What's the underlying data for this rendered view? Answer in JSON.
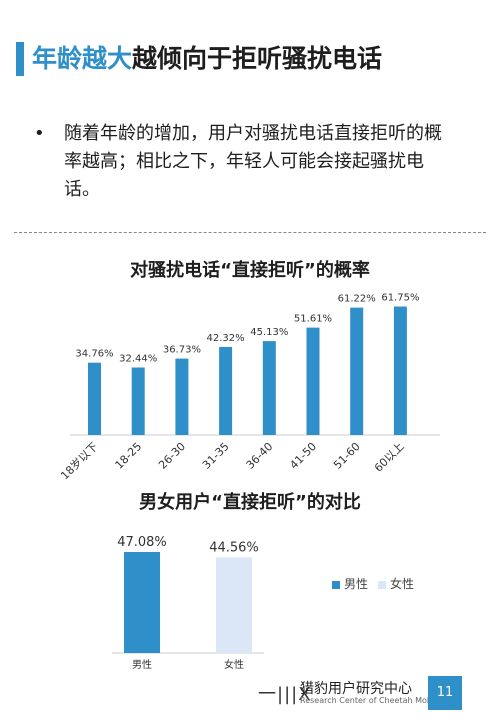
{
  "page": {
    "title_highlight": "年龄越大",
    "title_rest": "越倾向于拒听骚扰电话",
    "bullet_symbol": "•",
    "bullet_text": "随着年龄的增加，用户对骚扰电话直接拒听的概率越高；相比之下，年轻人可能会接起骚扰电话。",
    "footer_logo": "一|||X",
    "footer_name": "猎豹用户研究中心",
    "footer_sub": "Research Center of Cheetah Mobile",
    "page_number": "11",
    "colors": {
      "accent": "#2f8fc8",
      "female": "#dbe6f6"
    }
  },
  "chart_data": [
    {
      "type": "bar",
      "title": "对骚扰电话“直接拒听”的概率",
      "categories": [
        "18岁以下",
        "18-25",
        "26-30",
        "31-35",
        "36-40",
        "41-50",
        "51-60",
        "60以上"
      ],
      "values": [
        34.76,
        32.44,
        36.73,
        42.32,
        45.13,
        51.61,
        61.22,
        61.75
      ],
      "value_labels": [
        "34.76%",
        "32.44%",
        "36.73%",
        "42.32%",
        "45.13%",
        "51.61%",
        "61.22%",
        "61.75%"
      ],
      "ylim": [
        0,
        62
      ]
    },
    {
      "type": "bar",
      "title": "男女用户“直接拒听”的对比",
      "categories": [
        "男性",
        "女性"
      ],
      "values": [
        47.08,
        44.56
      ],
      "value_labels": [
        "47.08%",
        "44.56%"
      ],
      "legend": [
        "男性",
        "女性"
      ],
      "ylim": [
        0,
        47.08
      ]
    }
  ]
}
